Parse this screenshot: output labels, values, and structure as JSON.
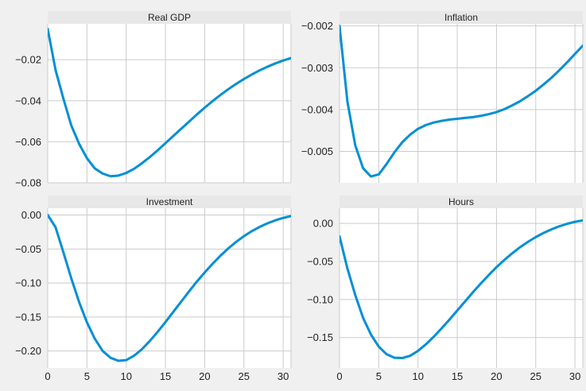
{
  "figure": {
    "background": "#f0f0f0",
    "line_color": "#008fd5"
  },
  "chart_data": [
    {
      "type": "line",
      "title": "Real GDP",
      "xlim": [
        0,
        31
      ],
      "ylim": [
        -0.08,
        -0.0025
      ],
      "xticks": [
        0,
        5,
        10,
        15,
        20,
        25,
        30
      ],
      "yticks": [
        -0.08,
        -0.06,
        -0.04,
        -0.02
      ],
      "ytick_labels": [
        "−0.08",
        "−0.06",
        "−0.04",
        "−0.02"
      ],
      "show_xtick_labels": false,
      "grid": true,
      "x": [
        0,
        1,
        2,
        3,
        4,
        5,
        6,
        7,
        8,
        9,
        10,
        11,
        12,
        13,
        14,
        15,
        16,
        17,
        18,
        19,
        20,
        21,
        22,
        23,
        24,
        25,
        26,
        27,
        28,
        29,
        30,
        31
      ],
      "y": [
        -0.005,
        -0.025,
        -0.039,
        -0.052,
        -0.061,
        -0.068,
        -0.073,
        -0.0755,
        -0.0768,
        -0.0765,
        -0.0752,
        -0.0732,
        -0.0705,
        -0.0675,
        -0.0642,
        -0.0607,
        -0.0572,
        -0.0537,
        -0.0502,
        -0.0467,
        -0.0434,
        -0.0402,
        -0.0372,
        -0.0344,
        -0.0318,
        -0.0294,
        -0.0272,
        -0.0252,
        -0.0234,
        -0.0218,
        -0.0204,
        -0.0192
      ]
    },
    {
      "type": "line",
      "title": "Inflation",
      "xlim": [
        0,
        31
      ],
      "ylim": [
        -0.00575,
        -0.00195
      ],
      "xticks": [
        0,
        5,
        10,
        15,
        20,
        25,
        30
      ],
      "yticks": [
        -0.005,
        -0.004,
        -0.003,
        -0.002
      ],
      "ytick_labels": [
        "−0.005",
        "−0.004",
        "−0.003",
        "−0.002"
      ],
      "show_xtick_labels": false,
      "grid": true,
      "x": [
        0,
        1,
        2,
        3,
        4,
        5,
        6,
        7,
        8,
        9,
        10,
        11,
        12,
        13,
        14,
        15,
        16,
        17,
        18,
        19,
        20,
        21,
        22,
        23,
        24,
        25,
        26,
        27,
        28,
        29,
        30,
        31
      ],
      "y": [
        -0.002,
        -0.0038,
        -0.00485,
        -0.0054,
        -0.0056,
        -0.00555,
        -0.0053,
        -0.00502,
        -0.00478,
        -0.0046,
        -0.00446,
        -0.00437,
        -0.00431,
        -0.00427,
        -0.00424,
        -0.00422,
        -0.0042,
        -0.00418,
        -0.00415,
        -0.00411,
        -0.00406,
        -0.00399,
        -0.0039,
        -0.0038,
        -0.00368,
        -0.00355,
        -0.0034,
        -0.00324,
        -0.00306,
        -0.00287,
        -0.00267,
        -0.00247
      ]
    },
    {
      "type": "line",
      "title": "Investment",
      "xlim": [
        0,
        31
      ],
      "ylim": [
        -0.225,
        0.01
      ],
      "xticks": [
        0,
        5,
        10,
        15,
        20,
        25,
        30
      ],
      "xtick_labels": [
        "0",
        "5",
        "10",
        "15",
        "20",
        "25",
        "30"
      ],
      "yticks": [
        -0.2,
        -0.15,
        -0.1,
        -0.05,
        0.0
      ],
      "ytick_labels": [
        "−0.20",
        "−0.15",
        "−0.10",
        "−0.05",
        "0.00"
      ],
      "show_xtick_labels": true,
      "grid": true,
      "x": [
        0,
        1,
        2,
        3,
        4,
        5,
        6,
        7,
        8,
        9,
        10,
        11,
        12,
        13,
        14,
        15,
        16,
        17,
        18,
        19,
        20,
        21,
        22,
        23,
        24,
        25,
        26,
        27,
        28,
        29,
        30,
        31
      ],
      "y": [
        0.0,
        -0.018,
        -0.055,
        -0.093,
        -0.128,
        -0.158,
        -0.182,
        -0.2,
        -0.21,
        -0.2145,
        -0.2135,
        -0.207,
        -0.1975,
        -0.1855,
        -0.172,
        -0.1575,
        -0.1425,
        -0.1275,
        -0.1125,
        -0.098,
        -0.0845,
        -0.0718,
        -0.06,
        -0.0492,
        -0.0396,
        -0.0311,
        -0.0238,
        -0.0175,
        -0.0122,
        -0.0078,
        -0.0043,
        -0.0015
      ]
    },
    {
      "type": "line",
      "title": "Hours",
      "xlim": [
        0,
        31
      ],
      "ylim": [
        -0.19,
        0.02
      ],
      "xticks": [
        0,
        5,
        10,
        15,
        20,
        25,
        30
      ],
      "xtick_labels": [
        "0",
        "5",
        "10",
        "15",
        "20",
        "25",
        "30"
      ],
      "yticks": [
        -0.15,
        -0.1,
        -0.05,
        0.0
      ],
      "ytick_labels": [
        "−0.15",
        "−0.10",
        "−0.05",
        "0.00"
      ],
      "show_xtick_labels": true,
      "grid": true,
      "x": [
        0,
        1,
        2,
        3,
        4,
        5,
        6,
        7,
        8,
        9,
        10,
        11,
        12,
        13,
        14,
        15,
        16,
        17,
        18,
        19,
        20,
        21,
        22,
        23,
        24,
        25,
        26,
        27,
        28,
        29,
        30,
        31
      ],
      "y": [
        -0.017,
        -0.059,
        -0.094,
        -0.124,
        -0.146,
        -0.162,
        -0.172,
        -0.1765,
        -0.177,
        -0.174,
        -0.1675,
        -0.159,
        -0.149,
        -0.138,
        -0.1265,
        -0.1145,
        -0.1025,
        -0.0905,
        -0.079,
        -0.068,
        -0.0575,
        -0.048,
        -0.0393,
        -0.0313,
        -0.0243,
        -0.018,
        -0.0125,
        -0.0078,
        -0.0038,
        -0.0005,
        0.0022,
        0.004
      ]
    }
  ]
}
